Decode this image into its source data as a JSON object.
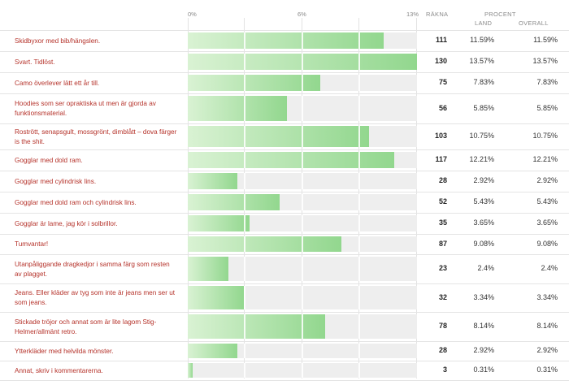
{
  "header": {
    "axis_ticks": [
      "0%",
      "6%",
      "13%"
    ],
    "count_label": "RÄKNA",
    "percent_label": "PROCENT",
    "land_label": "LAND",
    "overall_label": "OVERALL"
  },
  "colors": {
    "label": "#b5322a",
    "bar_start": "#d9f2d3",
    "bar_end": "#92d78e"
  },
  "axis_max_pct": 13.57,
  "rows": [
    {
      "label": "Skidbyxor med bib/hängslen.",
      "count": "111",
      "land": "11.59%",
      "overall": "11.59%",
      "value": 11.59
    },
    {
      "label": "Svart. Tidlöst.",
      "count": "130",
      "land": "13.57%",
      "overall": "13.57%",
      "value": 13.57
    },
    {
      "label": "Camo överlever lätt ett år till.",
      "count": "75",
      "land": "7.83%",
      "overall": "7.83%",
      "value": 7.83
    },
    {
      "label": "Hoodies som ser opraktiska ut men är gjorda av funktionsmaterial.",
      "count": "56",
      "land": "5.85%",
      "overall": "5.85%",
      "value": 5.85
    },
    {
      "label": "Rostrött, senapsgult, mossgrönt, dimblått – dova färger is the shit.",
      "count": "103",
      "land": "10.75%",
      "overall": "10.75%",
      "value": 10.75
    },
    {
      "label": "Gogglar med dold ram.",
      "count": "117",
      "land": "12.21%",
      "overall": "12.21%",
      "value": 12.21
    },
    {
      "label": "Gogglar med cylindrisk lins.",
      "count": "28",
      "land": "2.92%",
      "overall": "2.92%",
      "value": 2.92
    },
    {
      "label": "Gogglar med dold ram och cylindrisk lins.",
      "count": "52",
      "land": "5.43%",
      "overall": "5.43%",
      "value": 5.43
    },
    {
      "label": "Gogglar är lame, jag kör i solbrillor.",
      "count": "35",
      "land": "3.65%",
      "overall": "3.65%",
      "value": 3.65
    },
    {
      "label": "Tumvantar!",
      "count": "87",
      "land": "9.08%",
      "overall": "9.08%",
      "value": 9.08
    },
    {
      "label": "Utanpåliggande dragkedjor i samma färg som resten av plagget.",
      "count": "23",
      "land": "2.4%",
      "overall": "2.4%",
      "value": 2.4
    },
    {
      "label": "Jeans. Eller kläder av tyg som inte är jeans men ser ut som jeans.",
      "count": "32",
      "land": "3.34%",
      "overall": "3.34%",
      "value": 3.34
    },
    {
      "label": "Stickade tröjor och annat som är lite lagom Stig-Helmer/allmänt retro.",
      "count": "78",
      "land": "8.14%",
      "overall": "8.14%",
      "value": 8.14
    },
    {
      "label": "Ytterkläder med helvilda mönster.",
      "count": "28",
      "land": "2.92%",
      "overall": "2.92%",
      "value": 2.92
    },
    {
      "label": "Annat, skriv i kommentarerna.",
      "count": "3",
      "land": "0.31%",
      "overall": "0.31%",
      "value": 0.31
    }
  ]
}
